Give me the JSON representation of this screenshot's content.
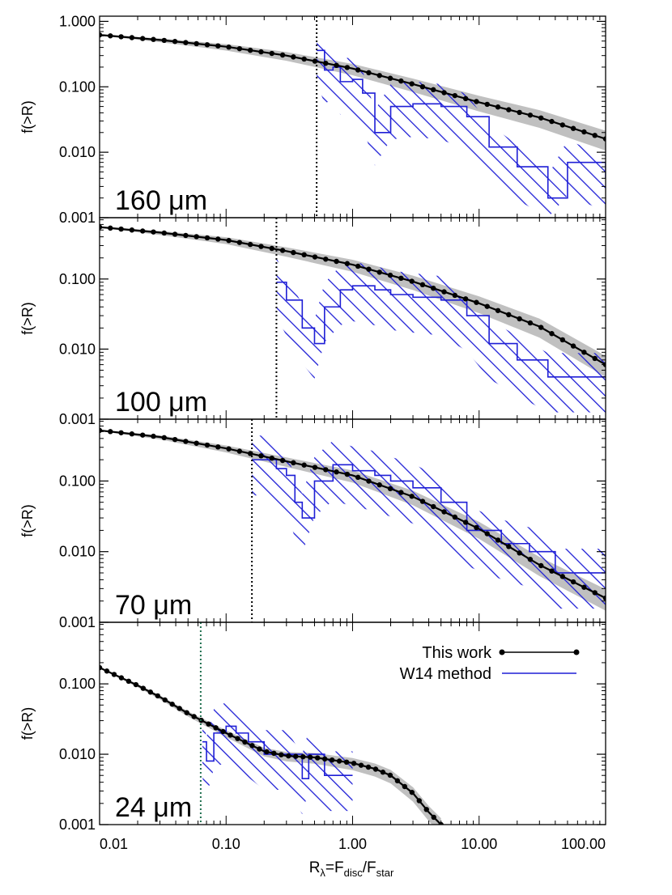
{
  "figure": {
    "xlabel_main": "R",
    "xlabel_sub1": "λ",
    "xlabel_mid1": "=F",
    "xlabel_sub2": "disc",
    "xlabel_mid2": "/F",
    "xlabel_sub3": "star"
  },
  "colors": {
    "model": "#000000",
    "band": "#c0c0c0",
    "w14": "#1f1fd6",
    "threshold": "#000000",
    "threshold_24": "#1f6f4f"
  },
  "chart_data": [
    {
      "type": "line",
      "panel_label": "160 μm",
      "ylabel": "f(>R)",
      "xlim": [
        0.01,
        100
      ],
      "ylim": [
        0.001,
        1.2
      ],
      "x_scale": "log",
      "y_scale": "log",
      "y_tick_labels": [
        "1.000",
        "0.100",
        "0.010",
        "0.001"
      ],
      "y_tick_values": [
        1.0,
        0.1,
        0.01,
        0.001
      ],
      "threshold_x": 0.52,
      "series": [
        {
          "name": "This work",
          "x": [
            0.01,
            0.03,
            0.1,
            0.3,
            1,
            3,
            10,
            30,
            100
          ],
          "y": [
            0.62,
            0.52,
            0.41,
            0.3,
            0.19,
            0.11,
            0.058,
            0.034,
            0.016
          ]
        },
        {
          "name": "W14 method",
          "x": [
            0.52,
            0.6,
            0.7,
            0.8,
            1.0,
            1.2,
            1.5,
            2,
            3,
            5,
            8,
            12,
            20,
            35,
            50,
            100
          ],
          "y": [
            0.36,
            0.18,
            0.2,
            0.12,
            0.13,
            0.08,
            0.02,
            0.05,
            0.055,
            0.05,
            0.035,
            0.012,
            0.006,
            0.002,
            0.007,
            0.004
          ]
        }
      ]
    },
    {
      "type": "line",
      "panel_label": "100 μm",
      "ylabel": "f(>R)",
      "xlim": [
        0.01,
        100
      ],
      "ylim": [
        0.001,
        0.75
      ],
      "x_scale": "log",
      "y_scale": "log",
      "y_tick_labels": [
        "0.100",
        "0.010",
        "0.001"
      ],
      "y_tick_values": [
        0.1,
        0.01,
        0.001
      ],
      "threshold_x": 0.25,
      "series": [
        {
          "name": "This work",
          "x": [
            0.01,
            0.03,
            0.1,
            0.3,
            1,
            3,
            10,
            30,
            100
          ],
          "y": [
            0.55,
            0.46,
            0.36,
            0.25,
            0.16,
            0.092,
            0.045,
            0.021,
            0.006
          ]
        },
        {
          "name": "W14 method",
          "x": [
            0.25,
            0.3,
            0.4,
            0.5,
            0.6,
            0.8,
            1.0,
            1.5,
            2,
            3,
            5,
            8,
            12,
            20,
            35,
            60,
            100
          ],
          "y": [
            0.09,
            0.05,
            0.02,
            0.012,
            0.04,
            0.07,
            0.08,
            0.07,
            0.06,
            0.055,
            0.05,
            0.03,
            0.012,
            0.007,
            0.004,
            0.004,
            0.004
          ]
        }
      ]
    },
    {
      "type": "line",
      "panel_label": "70 μm",
      "ylabel": "f(>R)",
      "xlim": [
        0.01,
        100
      ],
      "ylim": [
        0.001,
        0.75
      ],
      "x_scale": "log",
      "y_scale": "log",
      "y_tick_labels": [
        "0.100",
        "0.010",
        "0.001"
      ],
      "y_tick_values": [
        0.1,
        0.01,
        0.001
      ],
      "threshold_x": 0.16,
      "series": [
        {
          "name": "This work",
          "x": [
            0.01,
            0.03,
            0.1,
            0.3,
            1,
            3,
            10,
            30,
            100
          ],
          "y": [
            0.52,
            0.42,
            0.29,
            0.19,
            0.12,
            0.06,
            0.021,
            0.0065,
            0.0022
          ]
        },
        {
          "name": "W14 method",
          "x": [
            0.16,
            0.2,
            0.25,
            0.3,
            0.35,
            0.4,
            0.5,
            0.7,
            1.0,
            1.5,
            2,
            3,
            5,
            8,
            15,
            25,
            40,
            60,
            100
          ],
          "y": [
            0.2,
            0.2,
            0.15,
            0.12,
            0.05,
            0.03,
            0.1,
            0.17,
            0.14,
            0.12,
            0.1,
            0.08,
            0.05,
            0.02,
            0.013,
            0.01,
            0.005,
            0.005,
            0.005
          ]
        }
      ]
    },
    {
      "type": "line",
      "panel_label": "24 μm",
      "ylabel": "f(>R)",
      "xlim": [
        0.01,
        100
      ],
      "ylim": [
        0.001,
        0.75
      ],
      "x_scale": "log",
      "y_scale": "log",
      "y_tick_labels": [
        "0.100",
        "0.010",
        "0.001"
      ],
      "y_tick_values": [
        0.1,
        0.01,
        0.001
      ],
      "x_tick_labels": [
        "0.01",
        "0.10",
        "1.00",
        "10.00",
        "100.00"
      ],
      "x_tick_values": [
        0.01,
        0.1,
        1,
        10,
        100
      ],
      "threshold_x": 0.063,
      "legend_position": "top-right",
      "series": [
        {
          "name": "This work",
          "x": [
            0.01,
            0.02,
            0.03,
            0.05,
            0.1,
            0.2,
            0.3,
            0.5,
            1,
            1.5,
            2,
            3,
            4,
            5
          ],
          "y": [
            0.17,
            0.095,
            0.065,
            0.038,
            0.02,
            0.011,
            0.0095,
            0.009,
            0.0075,
            0.0062,
            0.005,
            0.0028,
            0.0015,
            0.001
          ]
        },
        {
          "name": "W14 method",
          "x": [
            0.065,
            0.07,
            0.08,
            0.1,
            0.12,
            0.15,
            0.2,
            0.3,
            0.4,
            0.45,
            0.6,
            1.0
          ],
          "y": [
            0.015,
            0.008,
            0.02,
            0.025,
            0.02,
            0.015,
            0.01,
            0.01,
            0.0045,
            0.01,
            0.005,
            0.005
          ]
        }
      ]
    }
  ]
}
